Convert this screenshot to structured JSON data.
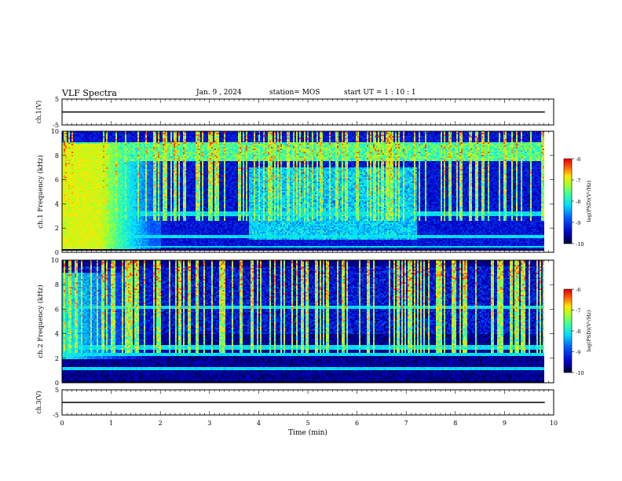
{
  "header": {
    "title": "VLF Spectra",
    "date": "Jan. 9 , 2024",
    "station": "station= MOS",
    "start": "start UT =  1 : 10 : 1"
  },
  "colors": {
    "frame": "#000000",
    "background": "#ffffff"
  },
  "chart_data": [
    {
      "type": "line",
      "panel": "ch.1 waveform",
      "ylabel": "ch.1(V)",
      "ylim": [
        -5,
        5
      ],
      "ytick_labels": [
        "-5",
        "5"
      ],
      "series": [
        {
          "x": [
            0,
            9.82
          ],
          "y": [
            0,
            0
          ]
        }
      ]
    },
    {
      "type": "heatmap",
      "panel": "ch.1 spectrogram",
      "ylabel": "ch.1 Frequency (kHz)",
      "ylim": [
        0,
        10
      ],
      "ytick_labels": [
        "0",
        "2",
        "4",
        "6",
        "8",
        "10"
      ],
      "xlim": [
        0,
        10
      ],
      "colorbar": {
        "label": "log(PSD)(V²/Hz)",
        "range": [
          -10,
          -6
        ],
        "tick_labels": [
          "-6",
          "-7",
          "-8",
          "-9",
          "-10"
        ]
      },
      "features": {
        "bands_khz": [
          3.2,
          1.3,
          0.4,
          8.6
        ],
        "intense_region": {
          "x": [
            0,
            1.5
          ],
          "y": [
            0,
            9
          ],
          "log_psd": -7.0
        }
      }
    },
    {
      "type": "heatmap",
      "panel": "ch.2 spectrogram",
      "ylabel": "ch.2 Frequency (kHz)",
      "ylim": [
        0,
        10
      ],
      "ytick_labels": [
        "0",
        "2",
        "4",
        "6",
        "8",
        "10"
      ],
      "xlim": [
        0,
        10
      ],
      "colorbar": {
        "label": "log(PSD)(V²/Hz)",
        "range": [
          -10,
          -6
        ],
        "tick_labels": [
          "-6",
          "-7",
          "-8",
          "-9",
          "-10"
        ]
      },
      "features": {
        "bands_khz": [
          3.0,
          2.4,
          6.2,
          1.2
        ],
        "intense_region": {
          "x": [
            0,
            1.2
          ],
          "y": [
            2,
            9
          ],
          "log_psd": -8.0
        }
      }
    },
    {
      "type": "line",
      "panel": "ch.3 waveform",
      "ylabel": "ch.3(V)",
      "ylim": [
        -5,
        5
      ],
      "ytick_labels": [
        "-5",
        "5"
      ],
      "xlabel": "Time (min)",
      "xlim": [
        0,
        10
      ],
      "xtick_labels": [
        "0",
        "1",
        "2",
        "3",
        "4",
        "5",
        "6",
        "7",
        "8",
        "9",
        "10"
      ],
      "series": [
        {
          "x": [
            0,
            9.82
          ],
          "y": [
            0,
            0
          ]
        }
      ]
    }
  ]
}
